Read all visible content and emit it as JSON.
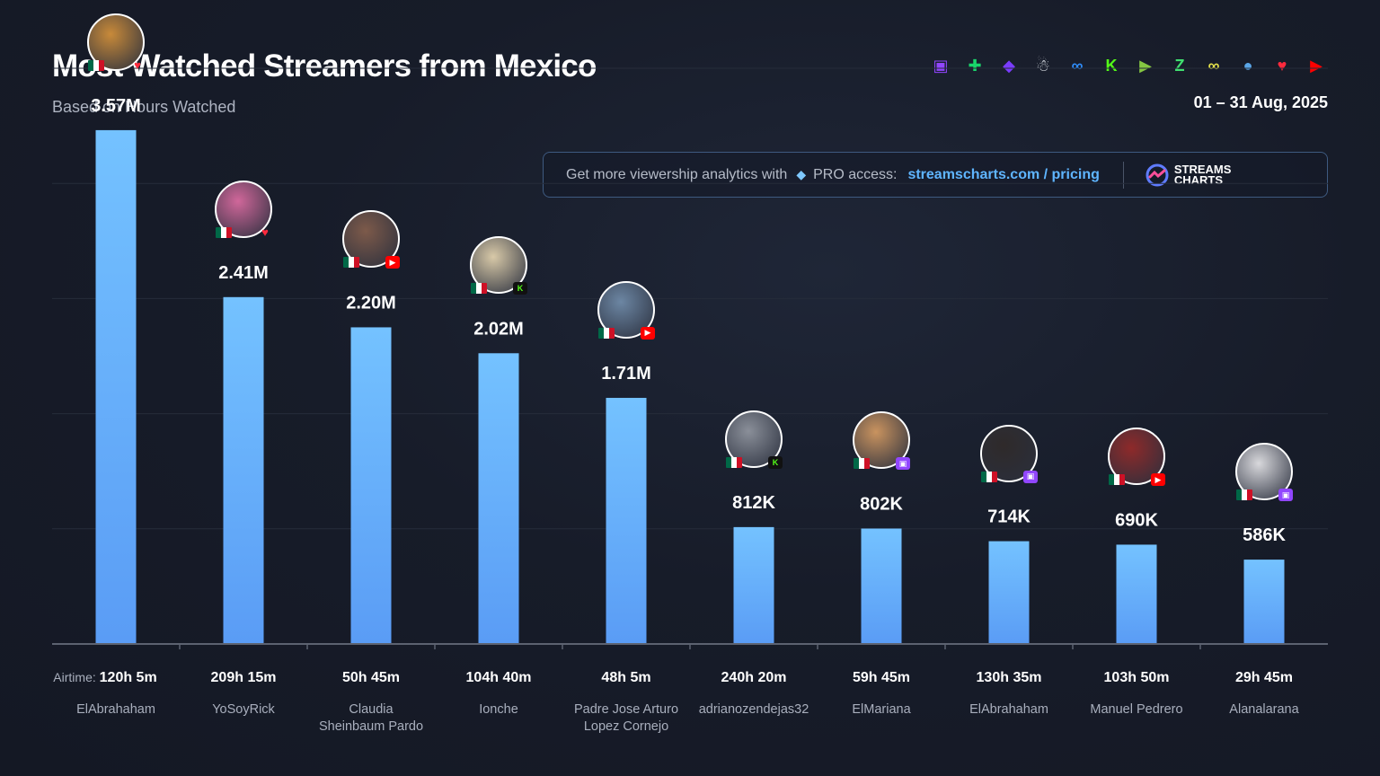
{
  "header": {
    "title": "Most Watched Streamers from Mexico",
    "subtitle": "Based on Hours Watched",
    "date_range": "01 – 31 Aug, 2025"
  },
  "platforms": [
    {
      "name": "twitch-icon",
      "glyph": "▣",
      "color": "#9146ff"
    },
    {
      "name": "trovo-icon",
      "glyph": "✚",
      "color": "#19d66b"
    },
    {
      "name": "vk-play-icon",
      "glyph": "◆",
      "color": "#7a3cff"
    },
    {
      "name": "mascot-icon",
      "glyph": "☃",
      "color": "#e8edf3"
    },
    {
      "name": "infinity-icon",
      "glyph": "∞",
      "color": "#2f8fff"
    },
    {
      "name": "kick-icon",
      "glyph": "K",
      "color": "#53fc18"
    },
    {
      "name": "rumble-icon",
      "glyph": "▶",
      "color": "#85c742"
    },
    {
      "name": "zing-icon",
      "glyph": "Z",
      "color": "#40e070"
    },
    {
      "name": "loop-icon",
      "glyph": "∞",
      "color": "#e6e34a"
    },
    {
      "name": "steam-icon",
      "glyph": "●",
      "color": "#5aa6e8"
    },
    {
      "name": "heart-icon",
      "glyph": "♥",
      "color": "#ff2a3d"
    },
    {
      "name": "youtube-icon",
      "glyph": "▶",
      "color": "#ff0000"
    }
  ],
  "promo": {
    "text": "Get more viewership analytics with",
    "pro": "PRO access:",
    "link": "streamscharts.com / pricing",
    "brand_line1": "STREAMS",
    "brand_line2": "CHARTS"
  },
  "airtime_label": "Airtime:",
  "colors": {
    "bar_top": "#74c2ff",
    "bar_bottom": "#5a9cf5",
    "axis": "#5c6270",
    "grid": "#262c3a"
  },
  "chart_data": {
    "type": "bar",
    "ylim": [
      0,
      4000000
    ],
    "grid": true,
    "categories": [
      "ElAbrahaham",
      "YoSoyRick",
      "Claudia Sheinbaum Pardo",
      "Ionche",
      "Padre Jose Arturo Lopez Cornejo",
      "adrianozendejas32",
      "ElMariana",
      "ElAbrahaham",
      "Manuel Pedrero",
      "Alanalarana"
    ],
    "category_lines": [
      [
        "ElAbrahaham"
      ],
      [
        "YoSoyRick"
      ],
      [
        "Claudia",
        "Sheinbaum Pardo"
      ],
      [
        "Ionche"
      ],
      [
        "Padre Jose Arturo",
        "Lopez Cornejo"
      ],
      [
        "adrianozendejas32"
      ],
      [
        "ElMariana"
      ],
      [
        "ElAbrahaham"
      ],
      [
        "Manuel Pedrero"
      ],
      [
        "Alanalarana"
      ]
    ],
    "values": [
      3570000,
      2410000,
      2200000,
      2020000,
      1710000,
      812000,
      802000,
      714000,
      690000,
      586000
    ],
    "value_labels": [
      "3.57M",
      "2.41M",
      "2.20M",
      "2.02M",
      "1.71M",
      "812K",
      "802K",
      "714K",
      "690K",
      "586K"
    ],
    "airtime": [
      "120h 5m",
      "209h 15m",
      "50h 45m",
      "104h 40m",
      "48h 5m",
      "240h 20m",
      "59h 45m",
      "130h 35m",
      "103h 50m",
      "29h 45m"
    ],
    "platform": [
      "heart",
      "heart",
      "youtube",
      "kick",
      "youtube",
      "kick",
      "twitch",
      "twitch",
      "youtube",
      "twitch"
    ],
    "avatar_colors": [
      "#c88a3a",
      "#d0679a",
      "#7d5a4a",
      "#d8c9a8",
      "#6c86a3",
      "#8a8f99",
      "#c9935f",
      "#2f2a2a",
      "#8e2a2a",
      "#d8d8dc"
    ]
  }
}
